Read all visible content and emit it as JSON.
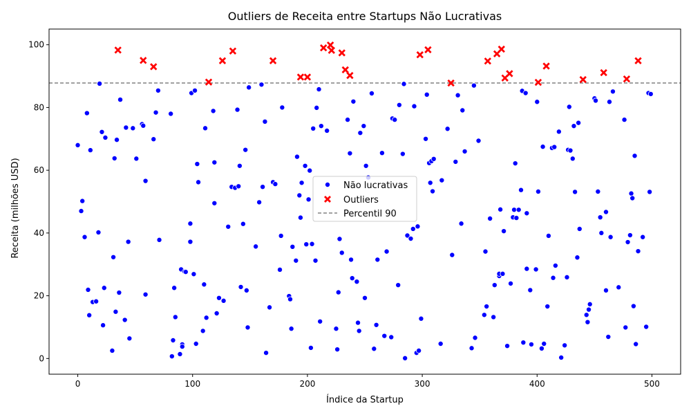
{
  "chart_data": {
    "type": "scatter",
    "title": "Outliers de Receita entre Startups Não Lucrativas",
    "xlabel": "Índice da Startup",
    "ylabel": "Receita (milhões USD)",
    "xlim": [
      -25,
      525
    ],
    "ylim": [
      -5,
      105
    ],
    "xticks": [
      0,
      100,
      200,
      300,
      400,
      500
    ],
    "yticks": [
      0,
      20,
      40,
      60,
      80,
      100
    ],
    "grid": false,
    "legend_position": "center",
    "colors": {
      "normal": "#0000ff",
      "outlier": "#ff0000",
      "threshold": "#808080"
    },
    "threshold": {
      "name": "Percentil 90",
      "value": 87.8
    },
    "series": [
      {
        "name": "Não lucrativas",
        "marker": "circle",
        "points": [
          [
            0,
            68
          ],
          [
            3,
            47
          ],
          [
            4,
            50.2
          ],
          [
            6,
            38.7
          ],
          [
            8,
            78.2
          ],
          [
            9,
            21.9
          ],
          [
            10,
            13.8
          ],
          [
            11,
            66.4
          ],
          [
            13,
            18
          ],
          [
            16,
            18.2
          ],
          [
            18,
            40.2
          ],
          [
            19,
            87.6
          ],
          [
            21,
            72.2
          ],
          [
            22,
            10.6
          ],
          [
            23,
            22.5
          ],
          [
            24,
            70.4
          ],
          [
            30,
            2.5
          ],
          [
            31,
            32.3
          ],
          [
            32,
            63.8
          ],
          [
            33,
            14.9
          ],
          [
            34,
            69.7
          ],
          [
            36,
            21
          ],
          [
            37,
            82.5
          ],
          [
            41,
            12.3
          ],
          [
            42,
            73.6
          ],
          [
            44,
            37.2
          ],
          [
            45,
            6.4
          ],
          [
            48,
            73.4
          ],
          [
            51,
            63.7
          ],
          [
            56,
            74.7
          ],
          [
            57,
            74.2
          ],
          [
            59,
            20.4
          ],
          [
            59,
            56.6
          ],
          [
            66,
            69.9
          ],
          [
            68,
            78.4
          ],
          [
            70,
            85.4
          ],
          [
            71,
            37.8
          ],
          [
            81,
            78
          ],
          [
            82,
            0.7
          ],
          [
            83,
            5.8
          ],
          [
            84,
            22.5
          ],
          [
            85,
            13.2
          ],
          [
            89,
            1.4
          ],
          [
            90,
            28.4
          ],
          [
            91,
            4.5
          ],
          [
            91,
            3.8
          ],
          [
            93,
            27.7
          ],
          [
            94,
            27.6
          ],
          [
            98,
            43
          ],
          [
            98,
            37.2
          ],
          [
            99,
            84.6
          ],
          [
            101,
            26.9
          ],
          [
            102,
            85.4
          ],
          [
            103,
            4.7
          ],
          [
            104,
            62
          ],
          [
            105,
            56.2
          ],
          [
            109,
            8.8
          ],
          [
            110,
            23.6
          ],
          [
            111,
            73.4
          ],
          [
            112,
            13
          ],
          [
            118,
            78.9
          ],
          [
            119,
            62.5
          ],
          [
            119,
            49.5
          ],
          [
            121,
            14.4
          ],
          [
            123,
            19.3
          ],
          [
            127,
            18.4
          ],
          [
            131,
            42
          ],
          [
            134,
            54.7
          ],
          [
            137,
            54.4
          ],
          [
            139,
            79.3
          ],
          [
            140,
            54.9
          ],
          [
            141,
            61.4
          ],
          [
            142,
            22.8
          ],
          [
            144,
            42.9
          ],
          [
            146,
            66.5
          ],
          [
            147,
            21.7
          ],
          [
            148,
            9.9
          ],
          [
            149,
            86.4
          ],
          [
            155,
            35.7
          ],
          [
            158,
            49.8
          ],
          [
            160,
            87.3
          ],
          [
            161,
            54.7
          ],
          [
            163,
            75.5
          ],
          [
            164,
            1.8
          ],
          [
            167,
            16.3
          ],
          [
            170,
            56.2
          ],
          [
            172,
            55.6
          ],
          [
            176,
            28.3
          ],
          [
            177,
            39.1
          ],
          [
            178,
            80
          ],
          [
            184,
            19.9
          ],
          [
            185,
            18.9
          ],
          [
            186,
            9.5
          ],
          [
            187,
            35.6
          ],
          [
            190,
            31.2
          ],
          [
            191,
            64.3
          ],
          [
            193,
            52
          ],
          [
            194,
            44.9
          ],
          [
            195,
            56
          ],
          [
            198,
            61.4
          ],
          [
            199,
            36.4
          ],
          [
            201,
            50.7
          ],
          [
            202,
            59.9
          ],
          [
            203,
            3.4
          ],
          [
            204,
            36.5
          ],
          [
            205,
            73.3
          ],
          [
            207,
            31.2
          ],
          [
            208,
            79.9
          ],
          [
            210,
            85.8
          ],
          [
            211,
            11.8
          ],
          [
            212,
            74.1
          ],
          [
            217,
            72.6
          ],
          [
            225,
            9.5
          ],
          [
            226,
            2.9
          ],
          [
            227,
            21.1
          ],
          [
            228,
            38.1
          ],
          [
            230,
            33.7
          ],
          [
            235,
            76.1
          ],
          [
            237,
            65.4
          ],
          [
            238,
            31.5
          ],
          [
            239,
            25.6
          ],
          [
            240,
            81.9
          ],
          [
            243,
            24.5
          ],
          [
            244,
            11.4
          ],
          [
            245,
            8.8
          ],
          [
            246,
            71.9
          ],
          [
            249,
            74.1
          ],
          [
            250,
            19.3
          ],
          [
            251,
            61.4
          ],
          [
            253,
            57.7
          ],
          [
            256,
            84.5
          ],
          [
            258,
            3.1
          ],
          [
            260,
            10.7
          ],
          [
            261,
            31.5
          ],
          [
            265,
            65.5
          ],
          [
            267,
            7.2
          ],
          [
            269,
            34.1
          ],
          [
            273,
            6.8
          ],
          [
            274,
            76.5
          ],
          [
            276,
            76.1
          ],
          [
            279,
            23.4
          ],
          [
            280,
            80.8
          ],
          [
            283,
            65.2
          ],
          [
            284,
            87.5
          ],
          [
            285,
            0.1
          ],
          [
            287,
            39.2
          ],
          [
            290,
            38.2
          ],
          [
            292,
            41.3
          ],
          [
            293,
            80.4
          ],
          [
            295,
            1.8
          ],
          [
            296,
            42.1
          ],
          [
            297,
            2.5
          ],
          [
            299,
            12.7
          ],
          [
            303,
            70
          ],
          [
            304,
            84.1
          ],
          [
            306,
            62.3
          ],
          [
            307,
            56
          ],
          [
            308,
            62.9
          ],
          [
            309,
            53.3
          ],
          [
            310,
            63.6
          ],
          [
            316,
            4.7
          ],
          [
            317,
            56.8
          ],
          [
            322,
            73.2
          ],
          [
            326,
            33
          ],
          [
            329,
            62.7
          ],
          [
            331,
            83.9
          ],
          [
            334,
            43
          ],
          [
            335,
            79.1
          ],
          [
            337,
            66
          ],
          [
            343,
            3.3
          ],
          [
            345,
            87
          ],
          [
            346,
            6.6
          ],
          [
            349,
            69.4
          ],
          [
            354,
            13.9
          ],
          [
            355,
            34.1
          ],
          [
            356,
            16.6
          ],
          [
            359,
            44.6
          ],
          [
            362,
            13.2
          ],
          [
            363,
            23.4
          ],
          [
            367,
            26.3
          ],
          [
            367,
            27
          ],
          [
            368,
            47.5
          ],
          [
            370,
            27
          ],
          [
            371,
            40.6
          ],
          [
            374,
            4
          ],
          [
            377,
            23.9
          ],
          [
            379,
            45
          ],
          [
            380,
            47.4
          ],
          [
            381,
            62.2
          ],
          [
            382,
            44.8
          ],
          [
            384,
            47.4
          ],
          [
            386,
            53.7
          ],
          [
            387,
            85.3
          ],
          [
            388,
            5.1
          ],
          [
            390,
            84.6
          ],
          [
            391,
            46.3
          ],
          [
            391,
            28.6
          ],
          [
            394,
            21.8
          ],
          [
            395,
            4.5
          ],
          [
            399,
            28.4
          ],
          [
            400,
            81.8
          ],
          [
            401,
            53.2
          ],
          [
            404,
            3.2
          ],
          [
            405,
            67.5
          ],
          [
            406,
            4.7
          ],
          [
            409,
            16.6
          ],
          [
            410,
            39.1
          ],
          [
            413,
            67.1
          ],
          [
            414,
            25.7
          ],
          [
            415,
            67.4
          ],
          [
            416,
            29.6
          ],
          [
            419,
            72.3
          ],
          [
            421,
            0.3
          ],
          [
            424,
            4.2
          ],
          [
            426,
            25.9
          ],
          [
            427,
            66.5
          ],
          [
            428,
            80.2
          ],
          [
            429,
            66.3
          ],
          [
            431,
            63.7
          ],
          [
            432,
            74.1
          ],
          [
            433,
            53.1
          ],
          [
            435,
            32.2
          ],
          [
            436,
            75.1
          ],
          [
            437,
            41.3
          ],
          [
            443,
            13.9
          ],
          [
            444,
            11.6
          ],
          [
            445,
            15.6
          ],
          [
            446,
            17.3
          ],
          [
            450,
            82.9
          ],
          [
            451,
            82.2
          ],
          [
            453,
            53.2
          ],
          [
            455,
            45
          ],
          [
            456,
            40
          ],
          [
            460,
            21.7
          ],
          [
            460,
            46.7
          ],
          [
            462,
            6.9
          ],
          [
            463,
            81.8
          ],
          [
            464,
            38.7
          ],
          [
            466,
            85.1
          ],
          [
            471,
            22.7
          ],
          [
            476,
            76.1
          ],
          [
            477,
            9.9
          ],
          [
            479,
            37.1
          ],
          [
            481,
            39.3
          ],
          [
            482,
            52.6
          ],
          [
            483,
            51.1
          ],
          [
            484,
            16.7
          ],
          [
            485,
            64.6
          ],
          [
            486,
            4.6
          ],
          [
            488,
            34.2
          ],
          [
            492,
            38.7
          ],
          [
            495,
            10.1
          ],
          [
            497,
            84.6
          ],
          [
            498,
            53.1
          ],
          [
            499,
            84.3
          ]
        ]
      },
      {
        "name": "Outliers",
        "marker": "x",
        "points": [
          [
            35,
            98.3
          ],
          [
            57,
            95
          ],
          [
            66,
            93
          ],
          [
            114,
            88.1
          ],
          [
            126,
            94.9
          ],
          [
            135,
            98
          ],
          [
            170,
            94.9
          ],
          [
            194,
            89.7
          ],
          [
            200,
            89.7
          ],
          [
            214,
            99
          ],
          [
            220,
            99.9
          ],
          [
            221,
            98.2
          ],
          [
            230,
            97.4
          ],
          [
            233,
            92
          ],
          [
            237,
            90.2
          ],
          [
            298,
            96.8
          ],
          [
            305,
            98.4
          ],
          [
            325,
            87.8
          ],
          [
            357,
            94.8
          ],
          [
            365,
            97.1
          ],
          [
            369,
            98.6
          ],
          [
            372,
            89.4
          ],
          [
            376,
            90.8
          ],
          [
            401,
            88
          ],
          [
            408,
            93.2
          ],
          [
            440,
            88.9
          ],
          [
            458,
            91.1
          ],
          [
            478,
            89.1
          ],
          [
            488,
            94.9
          ]
        ]
      }
    ],
    "legend": [
      "Não lucrativas",
      "Outliers",
      "Percentil 90"
    ]
  }
}
